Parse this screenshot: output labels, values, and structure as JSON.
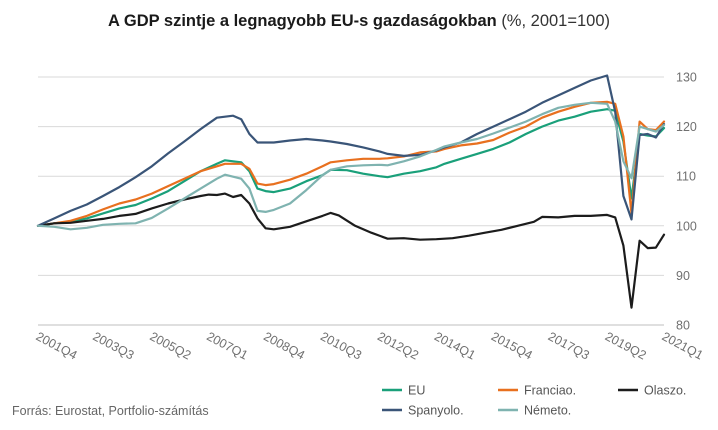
{
  "chart_data": {
    "type": "line",
    "title": "A GDP szintje a legnagyobb EU-s gazdaságokban",
    "unit": "(%, 2001=100)",
    "source": "Forrás: Eurostat, Portfolio-számítás",
    "ylim": [
      80,
      130
    ],
    "y_ticks": [
      80,
      90,
      100,
      110,
      120,
      130
    ],
    "grid": true,
    "legend_position": "bottom",
    "x_tick_labels": [
      "2001Q4",
      "2003Q3",
      "2005Q2",
      "2007Q1",
      "2008Q4",
      "2010Q3",
      "2012Q2",
      "2014Q1",
      "2015Q4",
      "2017Q3",
      "2019Q2",
      "2021Q1"
    ],
    "x_ticks_pos": [
      0,
      7,
      14,
      21,
      28,
      35,
      42,
      49,
      56,
      63,
      70,
      77
    ],
    "x_start": "2001Q4",
    "x_end": "2021Q1",
    "series": [
      {
        "name": "EU",
        "color": "#1aa07a",
        "points": [
          [
            0,
            100
          ],
          [
            2,
            100.5
          ],
          [
            4,
            100.8
          ],
          [
            6,
            101.5
          ],
          [
            8,
            102.5
          ],
          [
            10,
            103.5
          ],
          [
            12,
            104.2
          ],
          [
            14,
            105.5
          ],
          [
            16,
            107
          ],
          [
            18,
            109
          ],
          [
            20,
            111
          ],
          [
            22,
            112.5
          ],
          [
            23,
            113.2
          ],
          [
            25,
            112.8
          ],
          [
            26,
            111
          ],
          [
            27,
            107.5
          ],
          [
            28,
            107
          ],
          [
            29,
            106.8
          ],
          [
            31,
            107.5
          ],
          [
            33,
            109
          ],
          [
            35,
            110.2
          ],
          [
            36,
            111.3
          ],
          [
            38,
            111.2
          ],
          [
            40,
            110.5
          ],
          [
            42,
            110
          ],
          [
            43,
            109.8
          ],
          [
            45,
            110.5
          ],
          [
            47,
            111
          ],
          [
            49,
            111.8
          ],
          [
            50,
            112.5
          ],
          [
            52,
            113.5
          ],
          [
            54,
            114.5
          ],
          [
            56,
            115.5
          ],
          [
            58,
            116.8
          ],
          [
            60,
            118.5
          ],
          [
            62,
            120
          ],
          [
            64,
            121.2
          ],
          [
            66,
            122
          ],
          [
            68,
            123
          ],
          [
            70,
            123.5
          ],
          [
            71,
            123.2
          ],
          [
            72,
            117
          ],
          [
            73,
            105.5
          ],
          [
            74,
            118.5
          ],
          [
            75,
            118.2
          ],
          [
            76,
            118
          ],
          [
            77,
            119.7
          ]
        ]
      },
      {
        "name": "Franciao.",
        "color": "#e8701f",
        "points": [
          [
            0,
            100
          ],
          [
            2,
            100.5
          ],
          [
            4,
            101
          ],
          [
            6,
            102
          ],
          [
            8,
            103.3
          ],
          [
            10,
            104.5
          ],
          [
            12,
            105.3
          ],
          [
            14,
            106.5
          ],
          [
            16,
            108
          ],
          [
            18,
            109.5
          ],
          [
            20,
            111
          ],
          [
            22,
            112
          ],
          [
            23,
            112.5
          ],
          [
            25,
            112.5
          ],
          [
            26,
            111.5
          ],
          [
            27,
            108.5
          ],
          [
            28,
            108.2
          ],
          [
            29,
            108.4
          ],
          [
            31,
            109.3
          ],
          [
            33,
            110.5
          ],
          [
            35,
            112
          ],
          [
            36,
            112.8
          ],
          [
            38,
            113.2
          ],
          [
            40,
            113.5
          ],
          [
            42,
            113.5
          ],
          [
            43,
            113.6
          ],
          [
            45,
            114
          ],
          [
            47,
            114.8
          ],
          [
            49,
            115
          ],
          [
            50,
            115.5
          ],
          [
            52,
            116.2
          ],
          [
            54,
            116.6
          ],
          [
            56,
            117.3
          ],
          [
            58,
            118.8
          ],
          [
            60,
            120
          ],
          [
            62,
            121.8
          ],
          [
            64,
            123
          ],
          [
            66,
            124
          ],
          [
            68,
            124.8
          ],
          [
            70,
            125
          ],
          [
            71,
            124.6
          ],
          [
            72,
            118
          ],
          [
            73,
            102.5
          ],
          [
            74,
            121
          ],
          [
            75,
            119.5
          ],
          [
            76,
            119.3
          ],
          [
            77,
            121
          ]
        ]
      },
      {
        "name": "Olaszo.",
        "color": "#1c1c1c",
        "points": [
          [
            0,
            100
          ],
          [
            2,
            100.5
          ],
          [
            4,
            100.6
          ],
          [
            6,
            101
          ],
          [
            8,
            101.4
          ],
          [
            10,
            102
          ],
          [
            12,
            102.4
          ],
          [
            14,
            103.5
          ],
          [
            16,
            104.5
          ],
          [
            18,
            105.3
          ],
          [
            20,
            106
          ],
          [
            21,
            106.3
          ],
          [
            22,
            106.2
          ],
          [
            23,
            106.5
          ],
          [
            24,
            105.8
          ],
          [
            25,
            106.2
          ],
          [
            26,
            104.5
          ],
          [
            27,
            101.5
          ],
          [
            28,
            99.5
          ],
          [
            29,
            99.3
          ],
          [
            31,
            99.8
          ],
          [
            33,
            100.9
          ],
          [
            35,
            102
          ],
          [
            36,
            102.6
          ],
          [
            37,
            102.1
          ],
          [
            39,
            100
          ],
          [
            41,
            98.6
          ],
          [
            43,
            97.4
          ],
          [
            45,
            97.5
          ],
          [
            47,
            97.2
          ],
          [
            49,
            97.3
          ],
          [
            51,
            97.5
          ],
          [
            53,
            98
          ],
          [
            55,
            98.6
          ],
          [
            57,
            99.2
          ],
          [
            59,
            100
          ],
          [
            61,
            100.8
          ],
          [
            62,
            101.8
          ],
          [
            64,
            101.7
          ],
          [
            66,
            102
          ],
          [
            68,
            102
          ],
          [
            70,
            102.2
          ],
          [
            71,
            101.7
          ],
          [
            72,
            96
          ],
          [
            73,
            83.5
          ],
          [
            74,
            97
          ],
          [
            75,
            95.5
          ],
          [
            76,
            95.6
          ],
          [
            77,
            98.2
          ]
        ]
      },
      {
        "name": "Spanyolo.",
        "color": "#3a5578",
        "points": [
          [
            0,
            100
          ],
          [
            2,
            101.5
          ],
          [
            4,
            103
          ],
          [
            6,
            104.3
          ],
          [
            8,
            106
          ],
          [
            10,
            107.8
          ],
          [
            12,
            109.8
          ],
          [
            14,
            112
          ],
          [
            16,
            114.6
          ],
          [
            18,
            117
          ],
          [
            20,
            119.5
          ],
          [
            22,
            121.8
          ],
          [
            24,
            122.2
          ],
          [
            25,
            121.5
          ],
          [
            26,
            118.5
          ],
          [
            27,
            116.8
          ],
          [
            28,
            116.8
          ],
          [
            29,
            116.8
          ],
          [
            31,
            117.2
          ],
          [
            33,
            117.5
          ],
          [
            35,
            117.2
          ],
          [
            36,
            117
          ],
          [
            38,
            116.5
          ],
          [
            40,
            115.8
          ],
          [
            42,
            115
          ],
          [
            43,
            114.5
          ],
          [
            45,
            114.1
          ],
          [
            47,
            114.3
          ],
          [
            49,
            115.2
          ],
          [
            50,
            115.8
          ],
          [
            52,
            116.8
          ],
          [
            54,
            118.5
          ],
          [
            56,
            120
          ],
          [
            58,
            121.5
          ],
          [
            60,
            123
          ],
          [
            62,
            124.8
          ],
          [
            64,
            126.3
          ],
          [
            66,
            127.8
          ],
          [
            68,
            129.3
          ],
          [
            70,
            130.3
          ],
          [
            71,
            123
          ],
          [
            72,
            106
          ],
          [
            73,
            101.3
          ],
          [
            74,
            118.3
          ],
          [
            75,
            118.5
          ],
          [
            76,
            117.8
          ],
          [
            77,
            120.5
          ]
        ]
      },
      {
        "name": "Németo.",
        "color": "#7fb3b0",
        "points": [
          [
            0,
            100
          ],
          [
            2,
            99.8
          ],
          [
            4,
            99.3
          ],
          [
            6,
            99.6
          ],
          [
            8,
            100.2
          ],
          [
            10,
            100.4
          ],
          [
            12,
            100.5
          ],
          [
            14,
            101.6
          ],
          [
            16,
            103.5
          ],
          [
            18,
            105.5
          ],
          [
            20,
            107.5
          ],
          [
            22,
            109.5
          ],
          [
            23,
            110.3
          ],
          [
            25,
            109.5
          ],
          [
            26,
            107.5
          ],
          [
            27,
            103
          ],
          [
            28,
            102.8
          ],
          [
            29,
            103.2
          ],
          [
            31,
            104.5
          ],
          [
            33,
            107.2
          ],
          [
            35,
            110.2
          ],
          [
            36,
            111.3
          ],
          [
            38,
            112
          ],
          [
            40,
            112.2
          ],
          [
            42,
            112.3
          ],
          [
            43,
            112.2
          ],
          [
            45,
            113
          ],
          [
            47,
            114
          ],
          [
            49,
            115.3
          ],
          [
            50,
            116
          ],
          [
            52,
            116.8
          ],
          [
            54,
            117.5
          ],
          [
            56,
            118.6
          ],
          [
            58,
            119.8
          ],
          [
            60,
            121
          ],
          [
            62,
            122.5
          ],
          [
            64,
            123.8
          ],
          [
            66,
            124.4
          ],
          [
            68,
            124.8
          ],
          [
            70,
            124.6
          ],
          [
            71,
            121
          ],
          [
            72,
            113
          ],
          [
            73,
            109.6
          ],
          [
            74,
            120
          ],
          [
            75,
            119.5
          ],
          [
            76,
            119
          ],
          [
            77,
            120.3
          ]
        ]
      }
    ]
  }
}
